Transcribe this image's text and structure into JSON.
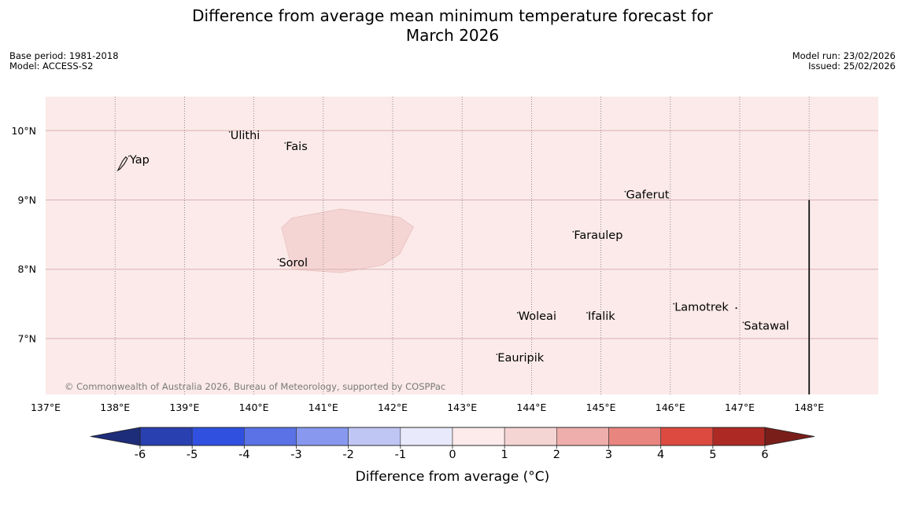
{
  "title_line1": "Difference from average mean minimum temperature forecast for",
  "title_line2": "March 2026",
  "meta_left": {
    "base_period": "Base period: 1981-2018",
    "model": "Model: ACCESS-S2"
  },
  "meta_right": {
    "model_run": "Model run: 23/02/2026",
    "issued": "Issued: 25/02/2026"
  },
  "map": {
    "lon_range": [
      137,
      149
    ],
    "lat_range": [
      6.2,
      10.5
    ],
    "lon_ticks": [
      {
        "value": 137,
        "label": "137°E"
      },
      {
        "value": 138,
        "label": "138°E"
      },
      {
        "value": 139,
        "label": "139°E"
      },
      {
        "value": 140,
        "label": "140°E"
      },
      {
        "value": 141,
        "label": "141°E"
      },
      {
        "value": 142,
        "label": "142°E"
      },
      {
        "value": 143,
        "label": "143°E"
      },
      {
        "value": 144,
        "label": "144°E"
      },
      {
        "value": 145,
        "label": "145°E"
      },
      {
        "value": 146,
        "label": "146°E"
      },
      {
        "value": 147,
        "label": "147°E"
      },
      {
        "value": 148,
        "label": "148°E"
      }
    ],
    "lat_ticks": [
      {
        "value": 7,
        "label": "7°N"
      },
      {
        "value": 8,
        "label": "8°N"
      },
      {
        "value": 9,
        "label": "9°N"
      },
      {
        "value": 10,
        "label": "10°N"
      }
    ],
    "background_color": "#fbeae9",
    "anomaly_region_color": "#f4d5d4",
    "anomaly_region": [
      [
        140.4,
        8.6
      ],
      [
        140.55,
        8.74
      ],
      [
        141.25,
        8.87
      ],
      [
        142.1,
        8.75
      ],
      [
        142.3,
        8.61
      ],
      [
        142.1,
        8.22
      ],
      [
        141.85,
        8.06
      ],
      [
        141.25,
        7.95
      ],
      [
        140.55,
        8.0
      ]
    ],
    "boundary_line": {
      "lon": 148,
      "lat_top": 9.0
    },
    "places": [
      {
        "name": "Yap",
        "lon": 138.2,
        "lat": 9.53
      },
      {
        "name": "Ulithi",
        "lon": 139.65,
        "lat": 9.88
      },
      {
        "name": "Fais",
        "lon": 140.45,
        "lat": 9.72
      },
      {
        "name": "Gaferut",
        "lon": 145.35,
        "lat": 9.02
      },
      {
        "name": "Faraulep",
        "lon": 144.6,
        "lat": 8.44
      },
      {
        "name": "Sorol",
        "lon": 140.35,
        "lat": 8.04
      },
      {
        "name": "Woleai",
        "lon": 143.8,
        "lat": 7.27
      },
      {
        "name": "Ifalik",
        "lon": 144.8,
        "lat": 7.27
      },
      {
        "name": "Lamotrek",
        "lon": 146.05,
        "lat": 7.4
      },
      {
        "name": "Satawal",
        "lon": 147.05,
        "lat": 7.13
      },
      {
        "name": "Eauripik",
        "lon": 143.5,
        "lat": 6.67
      }
    ],
    "copyright": "© Commonwealth of Australia 2026, Bureau of Meteorology, supported by COSPPac"
  },
  "chart_data": {
    "type": "heatmap",
    "title": "Difference from average mean minimum temperature forecast for March 2026",
    "colorbar_label": "Difference from average (°C)",
    "bounds": [
      -6,
      -5,
      -4,
      -3,
      -2,
      -1,
      0,
      1,
      2,
      3,
      4,
      5,
      6
    ],
    "colors": [
      "#2840b0",
      "#3050e0",
      "#5a72e6",
      "#8798ee",
      "#bfc6f4",
      "#e8eafb",
      "#fdeaea",
      "#f4d5d4",
      "#eeaeab",
      "#e8857f",
      "#dc4a40",
      "#ad2a24"
    ],
    "under_color": "#1e2d7a",
    "over_color": "#7a1e1a",
    "field_values": [
      {
        "region": "domain background",
        "range": [
          0,
          1
        ]
      },
      {
        "region": "area near 141°E, 8.5°N",
        "range": [
          1,
          2
        ]
      }
    ]
  }
}
